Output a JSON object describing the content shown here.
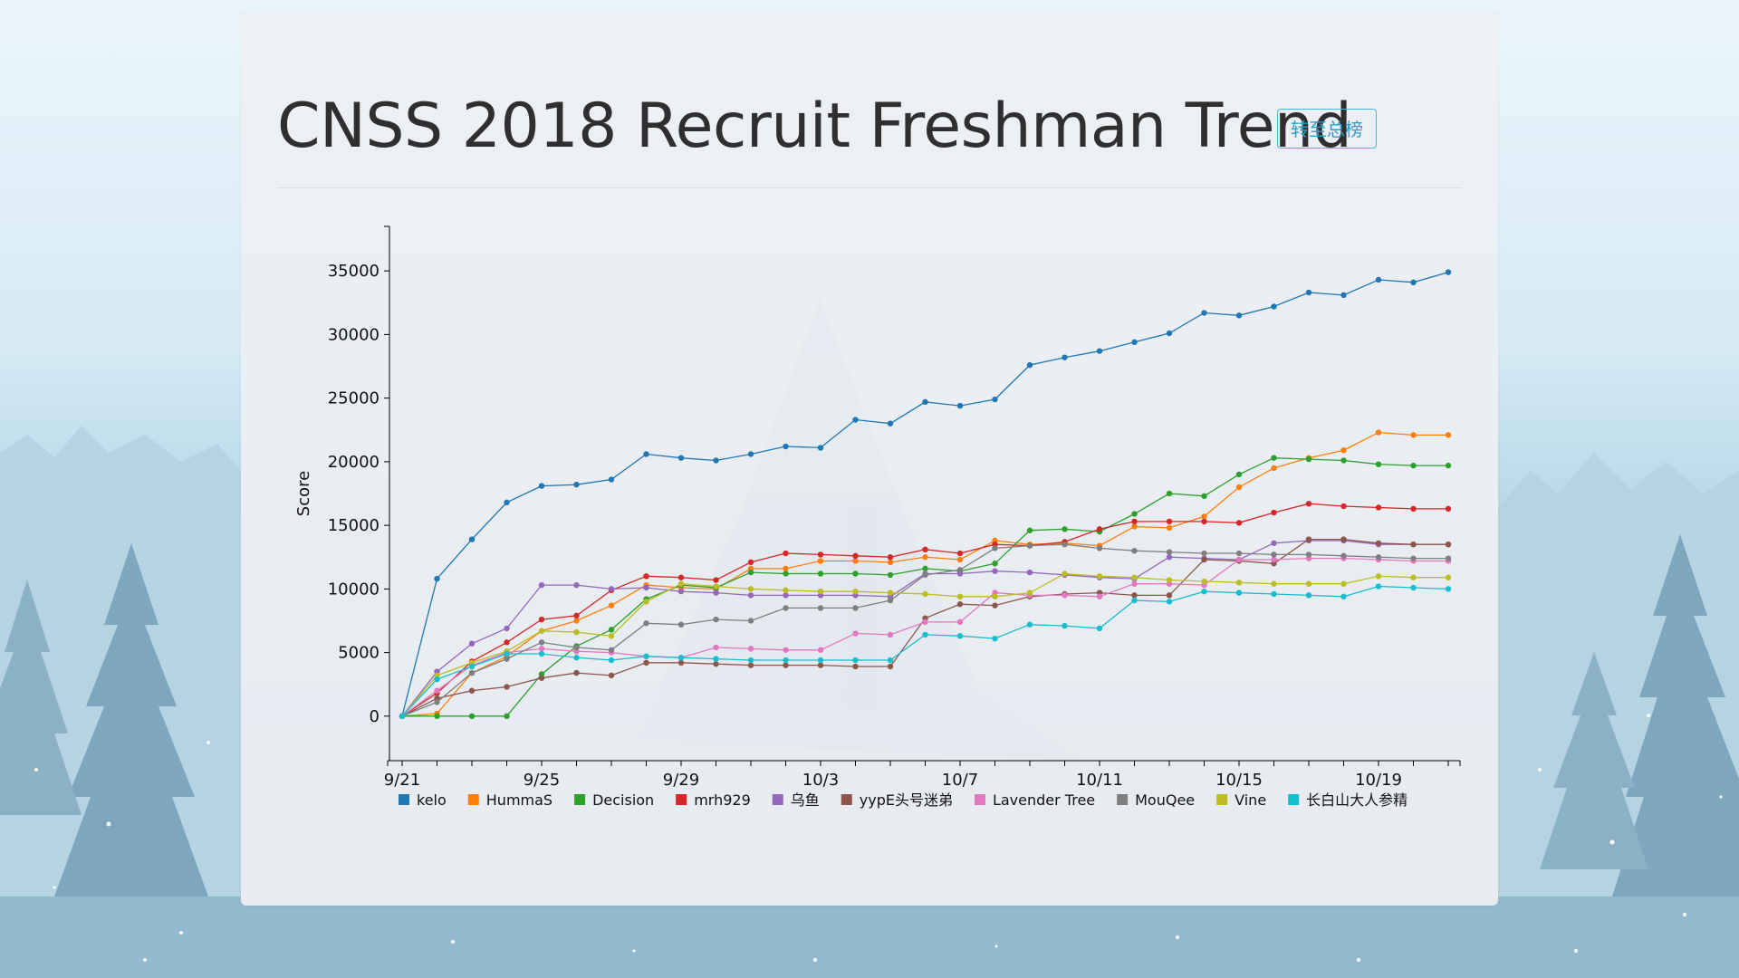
{
  "page": {
    "title": "CNSS 2018 Recruit Freshman Trend",
    "rank_button_label": "转至总榜"
  },
  "chart_data": {
    "type": "line",
    "title": "",
    "xlabel": "",
    "ylabel": "Score",
    "x": [
      "9/21",
      "9/22",
      "9/23",
      "9/24",
      "9/25",
      "9/26",
      "9/27",
      "9/28",
      "9/29",
      "9/30",
      "10/1",
      "10/2",
      "10/3",
      "10/4",
      "10/5",
      "10/6",
      "10/7",
      "10/8",
      "10/9",
      "10/10",
      "10/11",
      "10/12",
      "10/13",
      "10/14",
      "10/15",
      "10/16",
      "10/17",
      "10/18",
      "10/19",
      "10/20",
      "10/21"
    ],
    "x_tick_labels": [
      "9/21",
      "9/25",
      "9/29",
      "10/3",
      "10/7",
      "10/11",
      "10/15",
      "10/19"
    ],
    "y_tick_labels": [
      "0",
      "5000",
      "10000",
      "15000",
      "20000",
      "25000",
      "30000",
      "35000"
    ],
    "ylim": [
      -3500,
      38500
    ],
    "grid": false,
    "legend_position": "bottom-left",
    "series": [
      {
        "name": "kelo",
        "color": "#1f77b4",
        "values": [
          0,
          10800,
          13900,
          16800,
          18100,
          18200,
          18600,
          20600,
          20300,
          20100,
          20600,
          21200,
          21100,
          23300,
          23000,
          24700,
          24400,
          24900,
          27600,
          28200,
          28700,
          29400,
          30100,
          31700,
          31500,
          32200,
          33300,
          33100,
          34300,
          34100,
          34900
        ]
      },
      {
        "name": "HummaS",
        "color": "#ff7f0e",
        "values": [
          0,
          200,
          3400,
          4700,
          6700,
          7500,
          8700,
          10300,
          10100,
          10000,
          11600,
          11600,
          12200,
          12200,
          12100,
          12500,
          12300,
          13800,
          13500,
          13600,
          13400,
          14900,
          14800,
          15700,
          18000,
          19500,
          20300,
          20900,
          22300,
          22100,
          22100
        ]
      },
      {
        "name": "Decision",
        "color": "#2ca02c",
        "values": [
          0,
          0,
          0,
          0,
          3300,
          5500,
          6800,
          9200,
          10300,
          10100,
          11300,
          11200,
          11200,
          11200,
          11100,
          11600,
          11400,
          12000,
          14600,
          14700,
          14500,
          15900,
          17500,
          17300,
          19000,
          20300,
          20200,
          20100,
          19800,
          19700,
          19700
        ]
      },
      {
        "name": "mrh929",
        "color": "#d62728",
        "values": [
          0,
          1800,
          4300,
          5800,
          7600,
          7900,
          9900,
          11000,
          10900,
          10700,
          12100,
          12800,
          12700,
          12600,
          12500,
          13100,
          12800,
          13500,
          13400,
          13700,
          14700,
          15300,
          15300,
          15300,
          15200,
          16000,
          16700,
          16500,
          16400,
          16300,
          16300
        ]
      },
      {
        "name": "乌鱼",
        "color": "#9467bd",
        "values": [
          0,
          3500,
          5700,
          6900,
          10300,
          10300,
          10000,
          10100,
          9800,
          9700,
          9500,
          9500,
          9500,
          9500,
          9400,
          11200,
          11200,
          11400,
          11300,
          11100,
          10900,
          10800,
          12500,
          12400,
          12300,
          13600,
          13800,
          13800,
          13500,
          13500,
          13500
        ]
      },
      {
        "name": "yypE头号迷弟",
        "color": "#8c564b",
        "values": [
          0,
          1400,
          2000,
          2300,
          3000,
          3400,
          3200,
          4200,
          4200,
          4100,
          4000,
          4000,
          4000,
          3900,
          3900,
          7700,
          8800,
          8700,
          9400,
          9600,
          9700,
          9500,
          9500,
          12300,
          12200,
          12000,
          13900,
          13900,
          13600,
          13500,
          13500
        ]
      },
      {
        "name": "Lavender Tree",
        "color": "#e377c2",
        "values": [
          0,
          2000,
          4000,
          5000,
          5300,
          5100,
          5000,
          4700,
          4600,
          5400,
          5300,
          5200,
          5200,
          6500,
          6400,
          7400,
          7400,
          9700,
          9500,
          9500,
          9400,
          10400,
          10400,
          10300,
          12300,
          12300,
          12400,
          12400,
          12300,
          12200,
          12200
        ]
      },
      {
        "name": "MouQee",
        "color": "#7f7f7f",
        "values": [
          0,
          1100,
          3400,
          4500,
          5800,
          5400,
          5200,
          7300,
          7200,
          7600,
          7500,
          8500,
          8500,
          8500,
          9100,
          11100,
          11500,
          13200,
          13400,
          13500,
          13200,
          13000,
          12900,
          12800,
          12800,
          12700,
          12700,
          12600,
          12500,
          12400,
          12400
        ]
      },
      {
        "name": "Vine",
        "color": "#bcbd22",
        "values": [
          0,
          3200,
          4200,
          5100,
          6700,
          6600,
          6300,
          9000,
          10400,
          10200,
          10000,
          9900,
          9800,
          9800,
          9700,
          9600,
          9400,
          9400,
          9700,
          11200,
          11000,
          10900,
          10700,
          10600,
          10500,
          10400,
          10400,
          10400,
          11000,
          10900,
          10900
        ]
      },
      {
        "name": "长白山大人参精",
        "color": "#17becf",
        "values": [
          0,
          2900,
          3900,
          4900,
          4900,
          4600,
          4400,
          4700,
          4600,
          4500,
          4400,
          4400,
          4400,
          4400,
          4400,
          6400,
          6300,
          6100,
          7200,
          7100,
          6900,
          9100,
          9000,
          9800,
          9700,
          9600,
          9500,
          9400,
          10200,
          10100,
          10000
        ]
      }
    ]
  }
}
